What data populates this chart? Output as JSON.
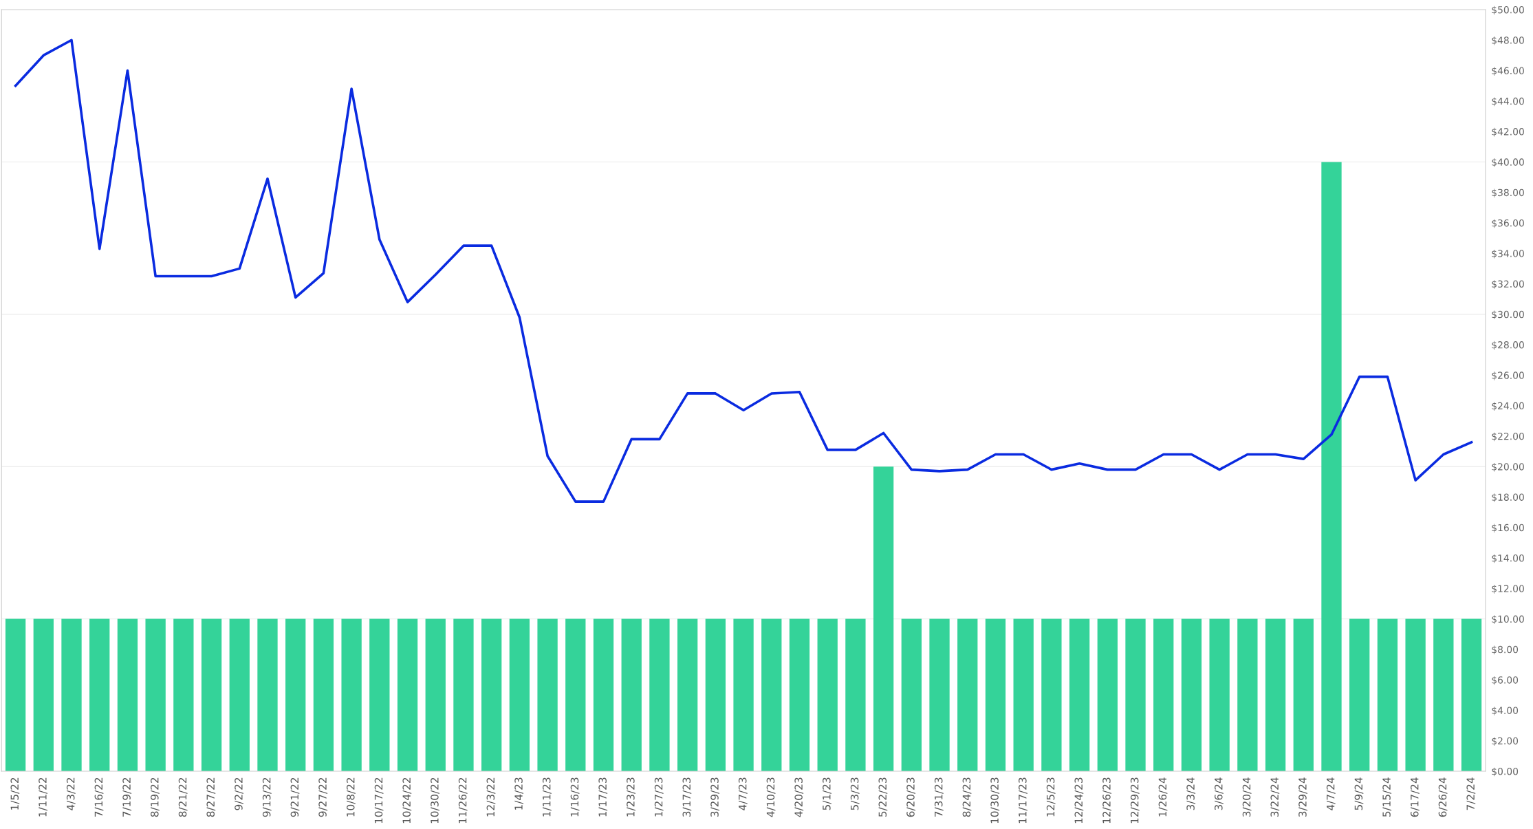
{
  "chart_data": {
    "type": "bar",
    "categories": [
      "1/5/22",
      "1/11/22",
      "4/3/22",
      "7/16/22",
      "7/19/22",
      "8/19/22",
      "8/21/22",
      "8/27/22",
      "9/2/22",
      "9/13/22",
      "9/21/22",
      "9/27/22",
      "10/8/22",
      "10/17/22",
      "10/24/22",
      "10/30/22",
      "11/26/22",
      "12/3/22",
      "1/4/23",
      "1/11/23",
      "1/16/23",
      "1/17/23",
      "1/23/23",
      "1/27/23",
      "3/17/23",
      "3/29/23",
      "4/7/23",
      "4/10/23",
      "4/20/23",
      "5/1/23",
      "5/3/23",
      "5/22/23",
      "6/20/23",
      "7/31/23",
      "8/24/23",
      "10/30/23",
      "11/17/23",
      "12/5/23",
      "12/24/23",
      "12/26/23",
      "12/29/23",
      "1/26/24",
      "3/3/24",
      "3/6/24",
      "3/20/24",
      "3/22/24",
      "3/29/24",
      "4/7/24",
      "5/9/24",
      "5/15/24",
      "6/17/24",
      "6/26/24",
      "7/2/24"
    ],
    "series": [
      {
        "color": "#34d399",
        "values": [
          10,
          10,
          10,
          10,
          10,
          10,
          10,
          10,
          10,
          10,
          10,
          10,
          10,
          10,
          10,
          10,
          10,
          10,
          10,
          10,
          10,
          10,
          10,
          10,
          10,
          10,
          10,
          10,
          10,
          10,
          10,
          20,
          10,
          10,
          10,
          10,
          10,
          10,
          10,
          10,
          10,
          10,
          10,
          10,
          10,
          10,
          10,
          40,
          10,
          10,
          10,
          10,
          10
        ]
      },
      {
        "type": "line",
        "color": "#0a2be0",
        "values": [
          45,
          47,
          48,
          34.3,
          46,
          32.5,
          32.5,
          32.5,
          33,
          38.9,
          31.1,
          32.7,
          44.8,
          34.9,
          30.8,
          32.6,
          34.5,
          34.5,
          29.8,
          20.7,
          17.7,
          17.7,
          21.8,
          21.8,
          24.8,
          24.8,
          23.7,
          24.8,
          24.9,
          21.1,
          21.1,
          22.2,
          19.8,
          19.7,
          19.8,
          20.8,
          20.8,
          19.8,
          20.2,
          19.8,
          19.8,
          20.8,
          20.8,
          19.8,
          20.8,
          20.8,
          20.5,
          22.1,
          25.9,
          25.9,
          19.1,
          20.8,
          21.6
        ]
      }
    ],
    "ylim": [
      0,
      50
    ],
    "yticks": [
      {
        "value": 0,
        "label": "$0.00"
      },
      {
        "value": 2,
        "label": "$2.00"
      },
      {
        "value": 4,
        "label": "$4.00"
      },
      {
        "value": 6,
        "label": "$6.00"
      },
      {
        "value": 8,
        "label": "$8.00"
      },
      {
        "value": 10,
        "label": "$10.00"
      },
      {
        "value": 12,
        "label": "$12.00"
      },
      {
        "value": 14,
        "label": "$14.00"
      },
      {
        "value": 16,
        "label": "$16.00"
      },
      {
        "value": 18,
        "label": "$18.00"
      },
      {
        "value": 20,
        "label": "$20.00"
      },
      {
        "value": 22,
        "label": "$22.00"
      },
      {
        "value": 24,
        "label": "$24.00"
      },
      {
        "value": 26,
        "label": "$26.00"
      },
      {
        "value": 28,
        "label": "$28.00"
      },
      {
        "value": 30,
        "label": "$30.00"
      },
      {
        "value": 32,
        "label": "$32.00"
      },
      {
        "value": 34,
        "label": "$34.00"
      },
      {
        "value": 36,
        "label": "$36.00"
      },
      {
        "value": 38,
        "label": "$38.00"
      },
      {
        "value": 40,
        "label": "$40.00"
      },
      {
        "value": 42,
        "label": "$42.00"
      },
      {
        "value": 44,
        "label": "$44.00"
      },
      {
        "value": 46,
        "label": "$46.00"
      },
      {
        "value": 48,
        "label": "$48.00"
      },
      {
        "value": 50,
        "label": "$50.00"
      }
    ],
    "ref_lines": [
      {
        "axis": "y",
        "value": 10,
        "color": "#eeeeee"
      },
      {
        "axis": "y",
        "value": 20,
        "color": "#eeeeee"
      },
      {
        "axis": "y",
        "value": 30,
        "color": "#eeeeee"
      },
      {
        "axis": "y",
        "value": 40,
        "color": "#eeeeee"
      }
    ],
    "grid": false,
    "legend": false,
    "marker": "none",
    "line_style": "solid"
  }
}
